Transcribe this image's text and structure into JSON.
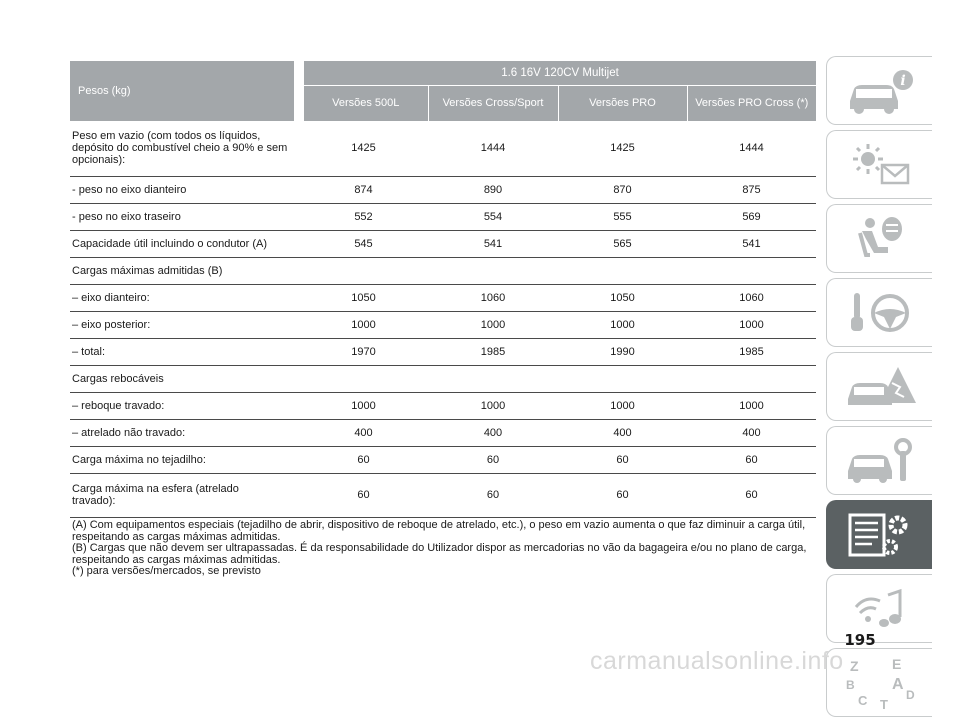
{
  "table": {
    "corner_header": "Pesos (kg)",
    "engine_header": "1.6 16V 120CV Multijet",
    "columns": [
      "Versões 500L",
      "Versões Cross/Sport",
      "Versões PRO",
      "Versões PRO Cross (*)"
    ],
    "rows": [
      {
        "label": "Peso em vazio (com todos os líquidos, depósito do combustível cheio a 90% e sem opcionais):",
        "values": [
          "1425",
          "1444",
          "1425",
          "1444"
        ]
      },
      {
        "label": "- peso no eixo dianteiro",
        "values": [
          "874",
          "890",
          "870",
          "875"
        ]
      },
      {
        "label": "- peso no eixo traseiro",
        "values": [
          "552",
          "554",
          "555",
          "569"
        ]
      },
      {
        "label": "Capacidade útil incluindo o condutor (A)",
        "values": [
          "545",
          "541",
          "565",
          "541"
        ]
      },
      {
        "label": "Cargas máximas admitidas (B)",
        "values": [
          "",
          "",
          "",
          ""
        ]
      },
      {
        "label": "– eixo dianteiro:",
        "values": [
          "1050",
          "1060",
          "1050",
          "1060"
        ]
      },
      {
        "label": "– eixo posterior:",
        "values": [
          "1000",
          "1000",
          "1000",
          "1000"
        ]
      },
      {
        "label": "– total:",
        "values": [
          "1970",
          "1985",
          "1990",
          "1985"
        ]
      },
      {
        "label": "Cargas rebocáveis",
        "values": [
          "",
          "",
          "",
          ""
        ]
      },
      {
        "label": "– reboque travado:",
        "values": [
          "1000",
          "1000",
          "1000",
          "1000"
        ]
      },
      {
        "label": "– atrelado não travado:",
        "values": [
          "400",
          "400",
          "400",
          "400"
        ]
      },
      {
        "label": "Carga máxima no tejadilho:",
        "values": [
          "60",
          "60",
          "60",
          "60"
        ]
      },
      {
        "label": "Carga máxima na esfera (atrelado travado):",
        "values": [
          "60",
          "60",
          "60",
          "60"
        ]
      }
    ]
  },
  "notes": [
    "(A) Com equipamentos especiais (tejadilho de abrir, dispositivo de reboque de atrelado, etc.), o peso em vazio aumenta o que faz diminuir a carga útil, respeitando as cargas máximas admitidas.",
    "(B) Cargas que não devem ser ultrapassadas. É da responsabilidade do Utilizador dispor as mercadorias no vão da bagageira e/ou no plano de carga, respeitando as cargas máximas admitidas.",
    "(*) para versões/mercados, se previsto"
  ],
  "sidebar": {
    "items": [
      {
        "icon": "car-info-icon"
      },
      {
        "icon": "warning-lights-mail-icon"
      },
      {
        "icon": "airbag-seat-icon"
      },
      {
        "icon": "key-steering-wheel-icon"
      },
      {
        "icon": "car-crash-icon"
      },
      {
        "icon": "car-maintenance-icon"
      },
      {
        "icon": "technical-data-icon",
        "active": true
      },
      {
        "icon": "multimedia-icon"
      },
      {
        "icon": "alphabetical-index-icon"
      }
    ],
    "index_letters": [
      "Z",
      "E",
      "B",
      "A",
      "C",
      "D",
      "T"
    ]
  },
  "page_number": "195",
  "watermark": "carmanualsonline.info",
  "colors": {
    "header_bg": "#a3a7aa",
    "active_tab": "#5b6163",
    "tab_border": "#c9cccd",
    "icon_gray": "#b9bcbd"
  }
}
